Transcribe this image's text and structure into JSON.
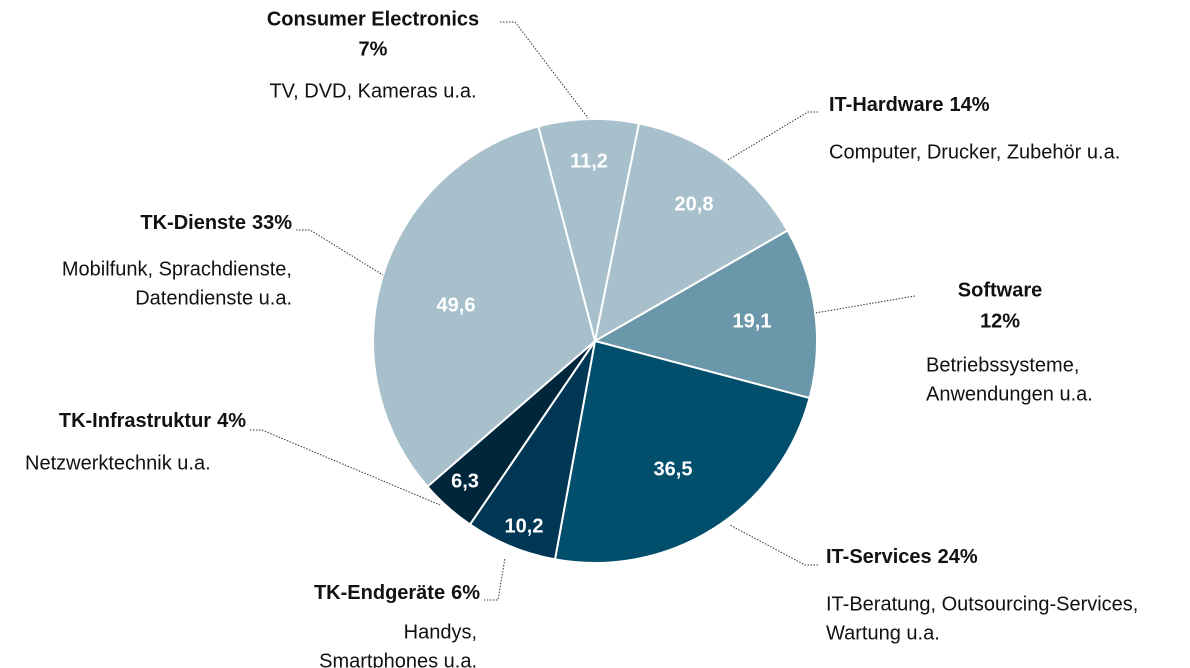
{
  "chart_data": {
    "type": "pie",
    "categories": [
      "Consumer Electronics",
      "IT-Hardware",
      "Software",
      "IT-Services",
      "TK-Endgeräte",
      "TK-Infrastruktur",
      "TK-Dienste"
    ],
    "values": [
      11.2,
      20.8,
      19.1,
      36.5,
      10.2,
      6.3,
      49.6
    ],
    "value_labels": [
      "11,2",
      "20,8",
      "19,1",
      "36,5",
      "10,2",
      "6,3",
      "49,6"
    ],
    "share_labels": [
      "7%",
      "14%",
      "12%",
      "24%",
      "6%",
      "4%",
      "33%"
    ],
    "descriptions": [
      [
        "TV, DVD, Kameras u.a."
      ],
      [
        "Computer, Drucker, Zubehör u.a."
      ],
      [
        "Betriebssysteme,",
        "Anwendungen u.a."
      ],
      [
        "IT-Beratung, Outsourcing-Services,",
        "Wartung u.a."
      ],
      [
        "Handys,",
        "Smartphones u.a."
      ],
      [
        "Netzwerktechnik u.a."
      ],
      [
        "Mobilfunk, Sprachdienste,",
        "Datendienste u.a."
      ]
    ],
    "colors": [
      "#a8c0cb",
      "#a8c0cb",
      "#6a97a9",
      "#024f6d",
      "#003754",
      "#00263b",
      "#a8c0cb"
    ]
  }
}
